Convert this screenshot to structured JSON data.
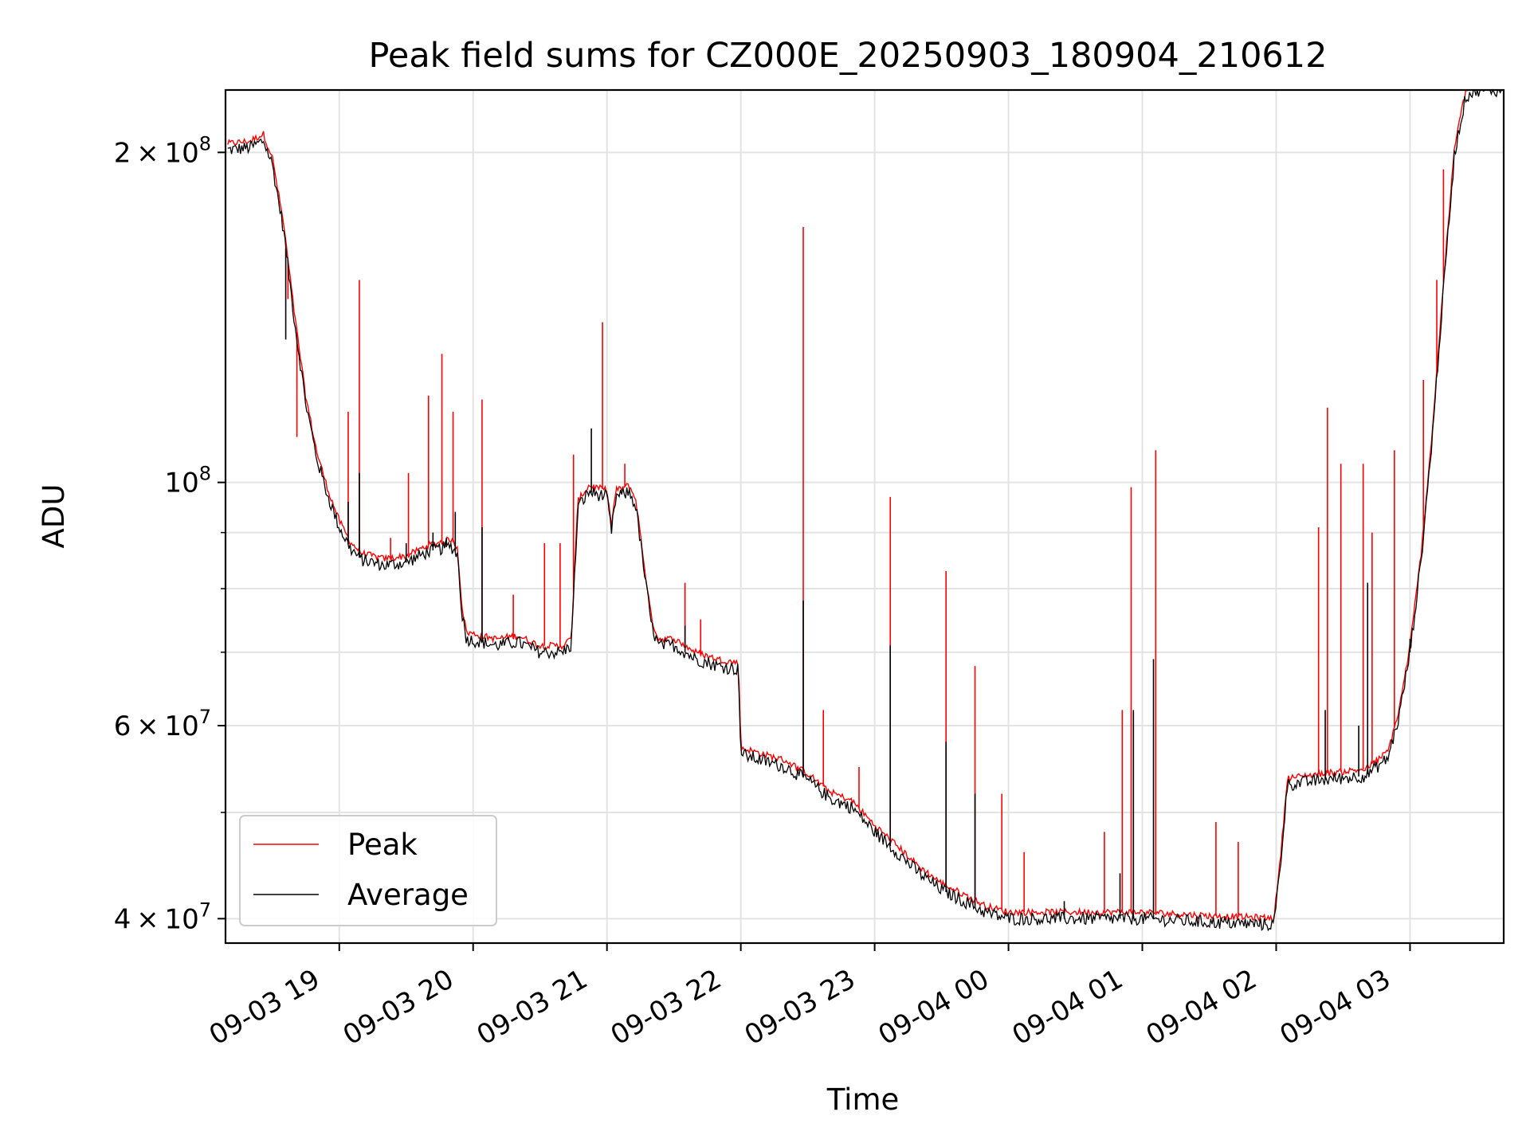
{
  "chart_data": {
    "type": "line",
    "title": "Peak field sums for CZ000E_20250903_180904_210612",
    "xlabel": "Time",
    "ylabel": "ADU",
    "y_scale": "log",
    "ylim": [
      38000000,
      228000000
    ],
    "xlim": [
      "2025-09-03 18:09",
      "2025-09-04 03:42"
    ],
    "grid": true,
    "legend_position": "lower-left",
    "x_ticks": [
      "09-03 19",
      "09-03 20",
      "09-03 21",
      "09-03 22",
      "09-03 23",
      "09-04 00",
      "09-04 01",
      "09-04 02",
      "09-04 03"
    ],
    "y_tick_labels": [
      {
        "mantissa": "2",
        "exponent": "8",
        "value": 200000000
      },
      {
        "mantissa": "",
        "exponent": "8",
        "value": 100000000
      },
      {
        "mantissa": "6",
        "exponent": "7",
        "value": 60000000
      },
      {
        "mantissa": "4",
        "exponent": "7",
        "value": 40000000
      }
    ],
    "y_minor_ticks": [
      50000000,
      70000000,
      80000000,
      90000000
    ],
    "series": [
      {
        "name": "Average",
        "color": "#000000",
        "points": [
          [
            "2025-09-03 18:10",
            201000000
          ],
          [
            "2025-09-03 18:20",
            202000000
          ],
          [
            "2025-09-03 18:26",
            205000000
          ],
          [
            "2025-09-03 18:30",
            195000000
          ],
          [
            "2025-09-03 18:35",
            170000000
          ],
          [
            "2025-09-03 18:40",
            140000000
          ],
          [
            "2025-09-03 18:45",
            118000000
          ],
          [
            "2025-09-03 18:50",
            105000000
          ],
          [
            "2025-09-03 18:55",
            97000000
          ],
          [
            "2025-09-03 19:00",
            91000000
          ],
          [
            "2025-09-03 19:05",
            87000000
          ],
          [
            "2025-09-03 19:10",
            85000000
          ],
          [
            "2025-09-03 19:20",
            84000000
          ],
          [
            "2025-09-03 19:30",
            84500000
          ],
          [
            "2025-09-03 19:40",
            86500000
          ],
          [
            "2025-09-03 19:50",
            87500000
          ],
          [
            "2025-09-03 19:53",
            86000000
          ],
          [
            "2025-09-03 19:55",
            76000000
          ],
          [
            "2025-09-03 19:57",
            72000000
          ],
          [
            "2025-09-03 20:10",
            71000000
          ],
          [
            "2025-09-03 20:20",
            71500000
          ],
          [
            "2025-09-03 20:30",
            70000000
          ],
          [
            "2025-09-03 20:40",
            70000000
          ],
          [
            "2025-09-03 20:44",
            71000000
          ],
          [
            "2025-09-03 20:47",
            95000000
          ],
          [
            "2025-09-03 20:52",
            98000000
          ],
          [
            "2025-09-03 21:00",
            97000000
          ],
          [
            "2025-09-03 21:02",
            90000000
          ],
          [
            "2025-09-03 21:04",
            97000000
          ],
          [
            "2025-09-03 21:10",
            98000000
          ],
          [
            "2025-09-03 21:13",
            95000000
          ],
          [
            "2025-09-03 21:17",
            82000000
          ],
          [
            "2025-09-03 21:20",
            74000000
          ],
          [
            "2025-09-03 21:23",
            71000000
          ],
          [
            "2025-09-03 21:30",
            71000000
          ],
          [
            "2025-09-03 21:40",
            69000000
          ],
          [
            "2025-09-03 21:50",
            68000000
          ],
          [
            "2025-09-03 21:59",
            67500000
          ],
          [
            "2025-09-03 22:00",
            56500000
          ],
          [
            "2025-09-03 22:20",
            55000000
          ],
          [
            "2025-09-03 22:30",
            53500000
          ],
          [
            "2025-09-03 22:40",
            51500000
          ],
          [
            "2025-09-03 22:50",
            50500000
          ],
          [
            "2025-09-03 23:00",
            48000000
          ],
          [
            "2025-09-03 23:10",
            46000000
          ],
          [
            "2025-09-03 23:20",
            44000000
          ],
          [
            "2025-09-03 23:30",
            42500000
          ],
          [
            "2025-09-03 23:40",
            41500000
          ],
          [
            "2025-09-03 23:50",
            40500000
          ],
          [
            "2025-09-04 00:00",
            40000000
          ],
          [
            "2025-09-04 00:30",
            40000000
          ],
          [
            "2025-09-04 01:00",
            40000000
          ],
          [
            "2025-09-04 01:30",
            39700000
          ],
          [
            "2025-09-04 01:59",
            39500000
          ],
          [
            "2025-09-04 02:02",
            45000000
          ],
          [
            "2025-09-04 02:05",
            53000000
          ],
          [
            "2025-09-04 02:20",
            53500000
          ],
          [
            "2025-09-04 02:40",
            54000000
          ],
          [
            "2025-09-04 02:50",
            56000000
          ],
          [
            "2025-09-04 02:55",
            61000000
          ],
          [
            "2025-09-04 03:00",
            70000000
          ],
          [
            "2025-09-04 03:05",
            85000000
          ],
          [
            "2025-09-04 03:10",
            110000000
          ],
          [
            "2025-09-04 03:15",
            150000000
          ],
          [
            "2025-09-04 03:20",
            200000000
          ],
          [
            "2025-09-04 03:25",
            225000000
          ],
          [
            "2025-09-04 03:30",
            228000000
          ],
          [
            "2025-09-04 03:42",
            228000000
          ]
        ],
        "spikes": [
          [
            "2025-09-03 18:36",
            135000000
          ],
          [
            "2025-09-03 19:04",
            96000000
          ],
          [
            "2025-09-03 19:09",
            102000000
          ],
          [
            "2025-09-03 19:30",
            88000000
          ],
          [
            "2025-09-03 19:42",
            90000000
          ],
          [
            "2025-09-03 19:48",
            89000000
          ],
          [
            "2025-09-03 19:52",
            94000000
          ],
          [
            "2025-09-03 20:04",
            91000000
          ],
          [
            "2025-09-03 20:53",
            112000000
          ],
          [
            "2025-09-03 21:35",
            74000000
          ],
          [
            "2025-09-03 22:28",
            78000000
          ],
          [
            "2025-09-03 23:07",
            71000000
          ],
          [
            "2025-09-03 23:32",
            58000000
          ],
          [
            "2025-09-03 23:45",
            52000000
          ],
          [
            "2025-09-04 00:25",
            41500000
          ],
          [
            "2025-09-04 00:50",
            44000000
          ],
          [
            "2025-09-04 00:56",
            62000000
          ],
          [
            "2025-09-04 01:05",
            69000000
          ],
          [
            "2025-09-04 02:22",
            62000000
          ],
          [
            "2025-09-04 02:37",
            60000000
          ],
          [
            "2025-09-04 02:41",
            81000000
          ],
          [
            "2025-09-04 03:00",
            72000000
          ]
        ]
      },
      {
        "name": "Peak",
        "color": "#ff0000",
        "spikes": [
          [
            "2025-09-03 18:37",
            147000000
          ],
          [
            "2025-09-03 18:41",
            110000000
          ],
          [
            "2025-09-03 19:04",
            116000000
          ],
          [
            "2025-09-03 19:09",
            153000000
          ],
          [
            "2025-09-03 19:23",
            89000000
          ],
          [
            "2025-09-03 19:31",
            102000000
          ],
          [
            "2025-09-03 19:40",
            120000000
          ],
          [
            "2025-09-03 19:46",
            131000000
          ],
          [
            "2025-09-03 19:51",
            116000000
          ],
          [
            "2025-09-03 20:04",
            119000000
          ],
          [
            "2025-09-03 20:18",
            79000000
          ],
          [
            "2025-09-03 20:32",
            88000000
          ],
          [
            "2025-09-03 20:39",
            88000000
          ],
          [
            "2025-09-03 20:45",
            106000000
          ],
          [
            "2025-09-03 20:58",
            140000000
          ],
          [
            "2025-09-03 21:08",
            104000000
          ],
          [
            "2025-09-03 21:35",
            81000000
          ],
          [
            "2025-09-03 21:42",
            75000000
          ],
          [
            "2025-09-03 22:28",
            171000000
          ],
          [
            "2025-09-03 22:37",
            62000000
          ],
          [
            "2025-09-03 22:53",
            55000000
          ],
          [
            "2025-09-03 23:07",
            97000000
          ],
          [
            "2025-09-03 23:32",
            83000000
          ],
          [
            "2025-09-03 23:45",
            68000000
          ],
          [
            "2025-09-03 23:57",
            52000000
          ],
          [
            "2025-09-04 00:07",
            46000000
          ],
          [
            "2025-09-04 00:43",
            48000000
          ],
          [
            "2025-09-04 00:51",
            62000000
          ],
          [
            "2025-09-04 00:55",
            99000000
          ],
          [
            "2025-09-04 01:06",
            107000000
          ],
          [
            "2025-09-04 01:33",
            49000000
          ],
          [
            "2025-09-04 01:43",
            47000000
          ],
          [
            "2025-09-04 02:19",
            91000000
          ],
          [
            "2025-09-04 02:23",
            117000000
          ],
          [
            "2025-09-04 02:29",
            104000000
          ],
          [
            "2025-09-04 02:39",
            104000000
          ],
          [
            "2025-09-04 02:43",
            90000000
          ],
          [
            "2025-09-04 02:53",
            107000000
          ],
          [
            "2025-09-04 03:06",
            124000000
          ],
          [
            "2025-09-04 03:12",
            153000000
          ],
          [
            "2025-09-04 03:15",
            193000000
          ]
        ]
      }
    ]
  }
}
